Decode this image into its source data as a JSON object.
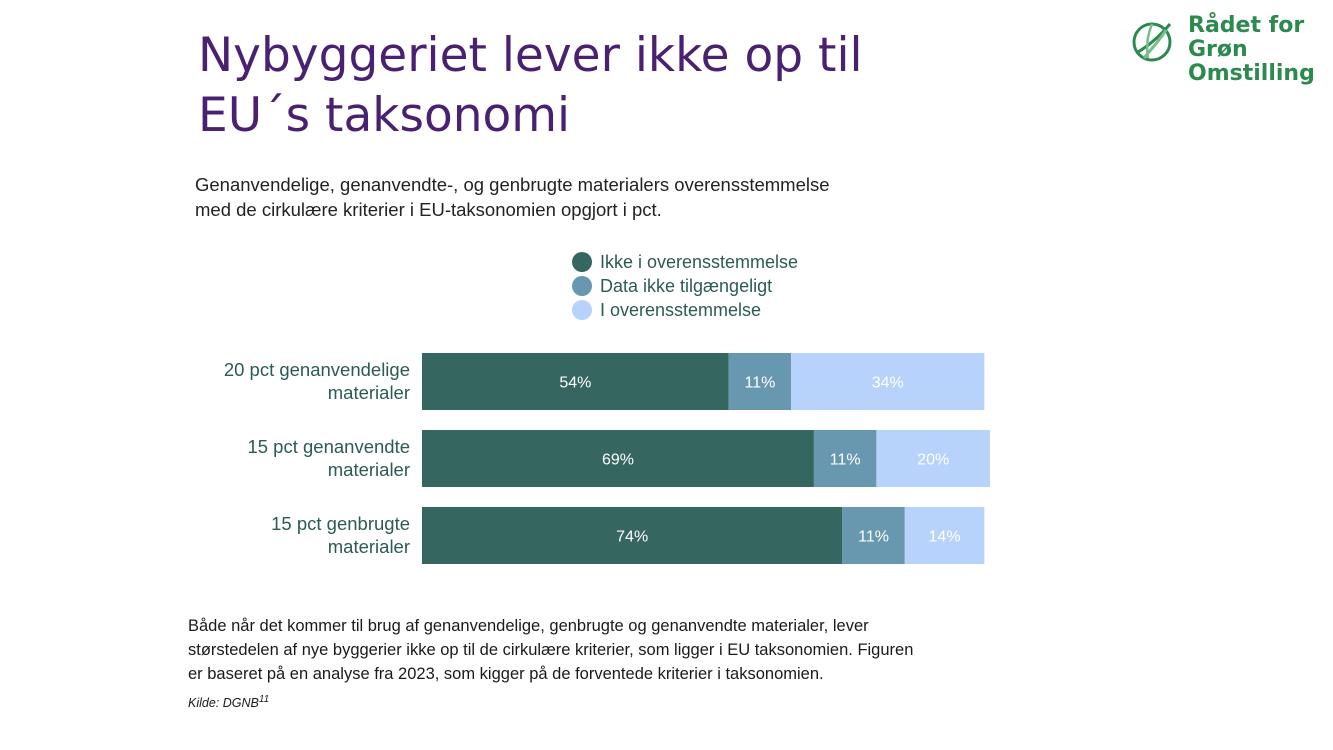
{
  "title_lines": [
    "Nybyggeriet lever ikke op til",
    "EU´s taksonomi"
  ],
  "logo": {
    "lines": [
      "Rådet for",
      "Grøn",
      "Omstilling"
    ],
    "color": "#2c8a4f"
  },
  "subtitle_lines": [
    "Genanvendelige, genanvendte-, og genbrugte materialers overensstemmelse",
    "med de cirkulære kriterier i EU-taksonomien opgjort i pct."
  ],
  "chart_data": {
    "type": "bar",
    "orientation": "horizontal",
    "stacked": true,
    "categories": [
      [
        "20 pct genanvendelige",
        "materialer"
      ],
      [
        "15 pct genanvendte",
        "materialer"
      ],
      [
        "15 pct genbrugte",
        "materialer"
      ]
    ],
    "series": [
      {
        "name": "Ikke i overensstemmelse",
        "color": "#35665f",
        "values": [
          54,
          69,
          74
        ],
        "labels": [
          "54%",
          "69%",
          "74%"
        ]
      },
      {
        "name": "Data ikke tilgængeligt",
        "color": "#6898b0",
        "values": [
          11,
          11,
          11
        ],
        "labels": [
          "11%",
          "11%",
          "11%"
        ]
      },
      {
        "name": "I overensstemmelse",
        "color": "#b7d3fb",
        "values": [
          34,
          20,
          14
        ],
        "labels": [
          "34%",
          "20%",
          "14%"
        ]
      }
    ],
    "legend_position": "top",
    "grid": false
  },
  "note_lines": [
    "Både når det kommer til brug af genanvendelige, genbrugte og genanvendte materialer, lever",
    "størstedelen af nye byggerier ikke op til de cirkulære kriterier, som ligger i EU taksonomien. Figuren",
    "er baseret på en analyse fra 2023, som kigger på de forventede kriterier i taksonomien."
  ],
  "source": {
    "label": "Kilde: DGNB",
    "ref": "11"
  }
}
